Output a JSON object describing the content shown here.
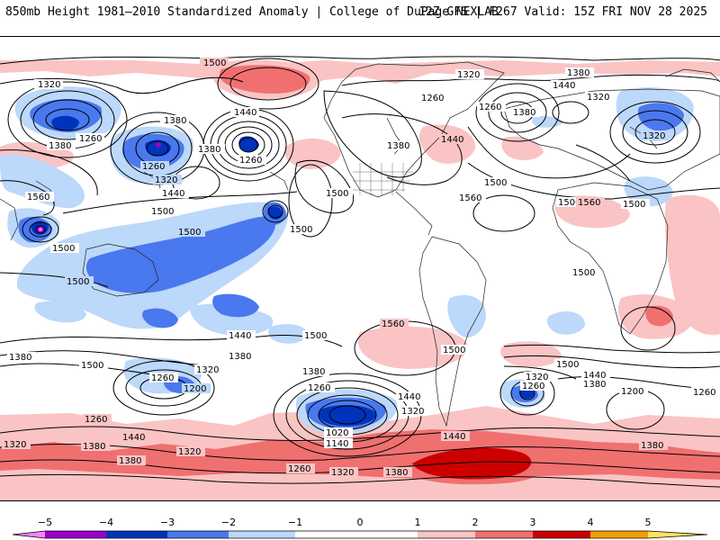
{
  "header": {
    "left_title": "850mb Height 1981–2010 Standardized Anomaly | College of DuPage NEXLAB",
    "right_title": "12Z GFS | F267 Valid: 15Z FRI NOV 28 2025"
  },
  "colors": {
    "neg5": "#ff80ff",
    "neg4": "#9a00cc",
    "neg3": "#0033bb",
    "neg2": "#4a78ee",
    "neg1": "#bcd8fa",
    "zero": "#ffffff",
    "pos1": "#fac4c4",
    "pos2": "#f07070",
    "pos3": "#cc0000",
    "pos4": "#f0a000",
    "pos5": "#ffe060"
  },
  "contour_labels": [
    "1500",
    "1320",
    "1380",
    "1260",
    "1440",
    "1500",
    "1560",
    "1260",
    "1320",
    "1380",
    "1440",
    "1500",
    "1380",
    "1260",
    "1380",
    "1500",
    "1500",
    "1560",
    "1320",
    "1260",
    "1440",
    "1500",
    "1320",
    "1380",
    "1440",
    "1500",
    "1560",
    "1500",
    "1500",
    "1560",
    "1500",
    "1500",
    "1500",
    "1440",
    "1500",
    "1380",
    "1260",
    "1200",
    "1320",
    "1380",
    "1380",
    "1260",
    "1020",
    "1140",
    "1320",
    "1440",
    "1320",
    "1260",
    "1440",
    "1500",
    "1380",
    "1200",
    "1260",
    "1260",
    "1380",
    "1440",
    "1320",
    "1380",
    "1260",
    "1320",
    "1380",
    "1320",
    "1380",
    "1440",
    "1500",
    "1380",
    "1320",
    "1260"
  ],
  "colorbar": {
    "ticks": [
      "−5",
      "−4",
      "−3",
      "−2",
      "−1",
      "0",
      "1",
      "2",
      "3",
      "4",
      "5"
    ]
  }
}
